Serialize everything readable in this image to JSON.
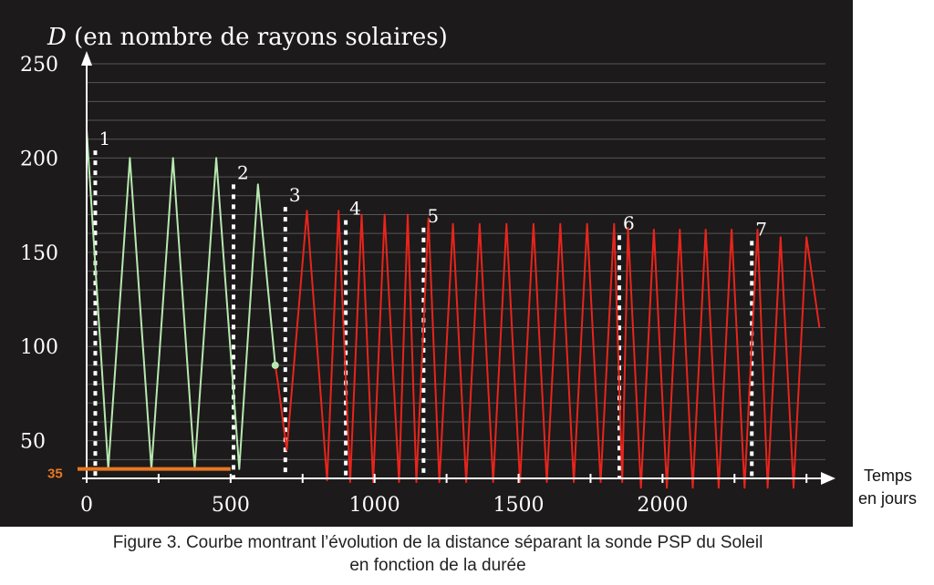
{
  "chart_data": {
    "type": "line",
    "ylabel_symbol": "D",
    "ylabel_rest": " (en nombre de rayons solaires)",
    "xlabel_line1": "Temps",
    "xlabel_line2": "en jours",
    "xlim": [
      0,
      2550
    ],
    "ylim": [
      30,
      250
    ],
    "x_ticks": [
      0,
      500,
      1000,
      1500,
      2000
    ],
    "y_ticks": [
      50,
      100,
      150,
      200,
      250
    ],
    "background": "#1c1a1a",
    "grid_color": "#555555",
    "series": [
      {
        "color": "#b7e8b0",
        "x": [
          0,
          75,
          150,
          225,
          300,
          375,
          450,
          530,
          595,
          655
        ],
        "y": [
          215,
          35,
          200,
          35,
          200,
          35,
          200,
          35,
          186,
          90
        ]
      },
      {
        "color": "#e8241c",
        "x": [
          655,
          665,
          695,
          765,
          835,
          875,
          915,
          955,
          995,
          1035,
          1085,
          1115,
          1145,
          1187,
          1225,
          1272,
          1318,
          1365,
          1412,
          1458,
          1505,
          1552,
          1598,
          1645,
          1692,
          1738,
          1785,
          1832,
          1860,
          1880,
          1925,
          1970,
          2015,
          2060,
          2105,
          2150,
          2195,
          2240,
          2285,
          2330,
          2365,
          2410,
          2455,
          2500,
          2545
        ],
        "y": [
          90,
          80,
          45,
          172,
          29,
          172,
          28,
          170,
          28,
          170,
          28,
          170,
          28,
          168,
          28,
          165,
          28,
          165,
          28,
          165,
          28,
          165,
          28,
          165,
          28,
          165,
          28,
          165,
          28,
          163,
          25,
          162,
          25,
          162,
          25,
          162,
          25,
          162,
          25,
          162,
          25,
          158,
          25,
          158,
          110
        ]
      }
    ],
    "markers": [
      {
        "label": "1",
        "x": 30,
        "line_top": 204
      },
      {
        "label": "2",
        "x": 510,
        "line_top": 186
      },
      {
        "label": "3",
        "x": 690,
        "line_top": 174
      },
      {
        "label": "4",
        "x": 900,
        "line_top": 167
      },
      {
        "label": "5",
        "x": 1170,
        "line_top": 163
      },
      {
        "label": "6",
        "x": 1850,
        "line_top": 159
      },
      {
        "label": "7",
        "x": 2310,
        "line_top": 156
      }
    ],
    "annotation": {
      "label": "35",
      "value": 35,
      "x_start": 0,
      "x_end": 500,
      "color": "#e87722"
    },
    "end_dot": {
      "x": 655,
      "y": 90,
      "color": "#b7e8b0"
    }
  },
  "caption": {
    "line1": "Figure 3. Courbe montrant l’évolution de la distance séparant la sonde PSP du Soleil",
    "line2": "en fonction de la durée"
  }
}
